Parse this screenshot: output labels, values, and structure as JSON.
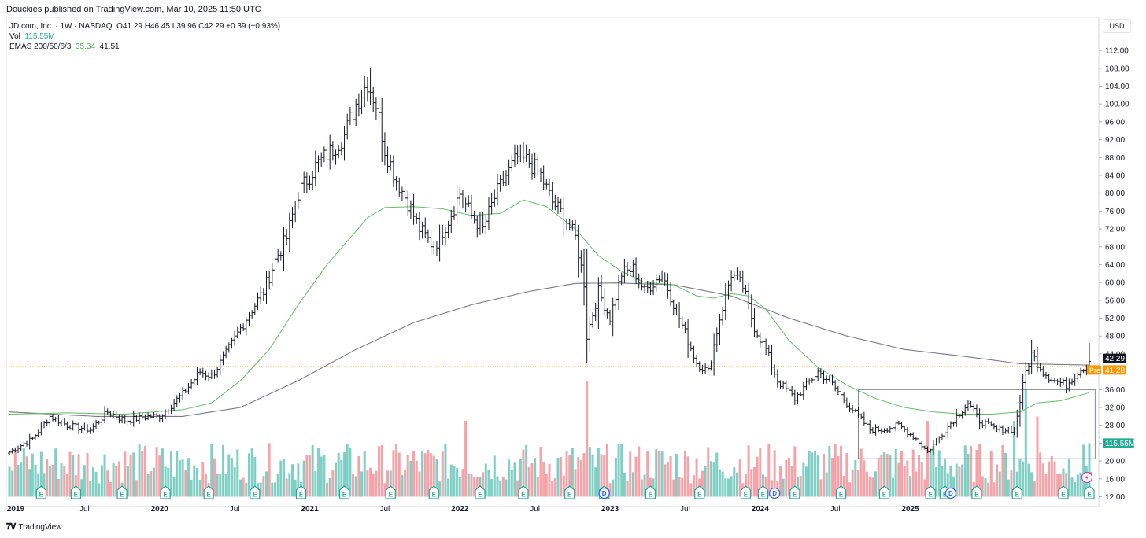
{
  "header": {
    "publisher_line": "Douckies published on TradingView.com, Mar 10, 2025 11:50 UTC"
  },
  "legend": {
    "symbol_line": "JD.com, Inc. · 1W · NASDAQ",
    "ohlc": {
      "o": "O41.29",
      "h": "H46.45",
      "l": "L39.96",
      "c": "C42.29",
      "change": "+0.39 (+0.93%)"
    },
    "vol_label": "Vol",
    "vol_value": "115.55M",
    "ema_label": "EMAS 200/50/6/3",
    "ema_value_1": "35.34",
    "ema_value_2": "41.51"
  },
  "currency": "USD",
  "footer": {
    "brand": "TradingView"
  },
  "colors": {
    "up": "#22ab94",
    "down": "#f7525f",
    "bar": "#131722",
    "ema50": "#66bb6a",
    "ema200": "#787b86",
    "price_line": "#ff9800",
    "vol_up": "#7fcfc4",
    "vol_down": "#f4a3a9"
  },
  "chart_data": {
    "type": "ohlc",
    "x_axis_labels": [
      "2019",
      "Jul",
      "2020",
      "Jul",
      "2021",
      "Jul",
      "2022",
      "Jul",
      "2023",
      "Jul",
      "2024",
      "Jul",
      "2025"
    ],
    "y_ticks": [
      "12.00",
      "16.00",
      "20.00",
      "24.00",
      "28.00",
      "32.00",
      "36.00",
      "40.00",
      "44.00",
      "48.00",
      "52.00",
      "56.00",
      "60.00",
      "64.00",
      "68.00",
      "72.00",
      "76.00",
      "80.00",
      "84.00",
      "88.00",
      "92.00",
      "96.00",
      "100.00",
      "104.00",
      "108.00",
      "112.00"
    ],
    "ylim": [
      10.3,
      115.6
    ],
    "last_price_label": "42.29",
    "premarket_label": "Pre",
    "premarket_price_label": "41.28",
    "volume_label": "115.55M",
    "price_key_points": [
      [
        0,
        22
      ],
      [
        8,
        25
      ],
      [
        14,
        30
      ],
      [
        20,
        28
      ],
      [
        28,
        27
      ],
      [
        34,
        31
      ],
      [
        40,
        29
      ],
      [
        48,
        30
      ],
      [
        52,
        30
      ],
      [
        60,
        35
      ],
      [
        66,
        40
      ],
      [
        70,
        39
      ],
      [
        75,
        44
      ],
      [
        82,
        52
      ],
      [
        88,
        58
      ],
      [
        92,
        65
      ],
      [
        96,
        70
      ],
      [
        100,
        80
      ],
      [
        106,
        86
      ],
      [
        112,
        90
      ],
      [
        116,
        93
      ],
      [
        120,
        100
      ],
      [
        124,
        105
      ],
      [
        127,
        100
      ],
      [
        130,
        90
      ],
      [
        134,
        83
      ],
      [
        138,
        78
      ],
      [
        142,
        72
      ],
      [
        147,
        68
      ],
      [
        152,
        74
      ],
      [
        156,
        80
      ],
      [
        160,
        75
      ],
      [
        164,
        72
      ],
      [
        168,
        79
      ],
      [
        172,
        84
      ],
      [
        176,
        88
      ],
      [
        180,
        87
      ],
      [
        184,
        84
      ],
      [
        188,
        78
      ],
      [
        192,
        75
      ],
      [
        196,
        70
      ],
      [
        199,
        60
      ],
      [
        200,
        48
      ],
      [
        204,
        58
      ],
      [
        208,
        52
      ],
      [
        212,
        62
      ],
      [
        216,
        63
      ],
      [
        220,
        58
      ],
      [
        226,
        62
      ],
      [
        232,
        52
      ],
      [
        238,
        42
      ],
      [
        242,
        40
      ],
      [
        246,
        52
      ],
      [
        250,
        62
      ],
      [
        254,
        59
      ],
      [
        258,
        50
      ],
      [
        262,
        45
      ],
      [
        266,
        38
      ],
      [
        272,
        34
      ],
      [
        276,
        37
      ],
      [
        280,
        40
      ],
      [
        284,
        38
      ],
      [
        290,
        33
      ],
      [
        294,
        30
      ],
      [
        298,
        27
      ],
      [
        302,
        27
      ],
      [
        308,
        28
      ],
      [
        314,
        25
      ],
      [
        318,
        22
      ],
      [
        324,
        27
      ],
      [
        328,
        30
      ],
      [
        332,
        33
      ],
      [
        336,
        29
      ],
      [
        342,
        27
      ],
      [
        348,
        27
      ],
      [
        352,
        40
      ],
      [
        354,
        44
      ],
      [
        358,
        40
      ],
      [
        362,
        38
      ],
      [
        366,
        37
      ],
      [
        370,
        40
      ],
      [
        374,
        42
      ]
    ],
    "ema50_key_points": [
      [
        0,
        30.5
      ],
      [
        20,
        30.8
      ],
      [
        40,
        30.5
      ],
      [
        60,
        31.5
      ],
      [
        70,
        33
      ],
      [
        80,
        38
      ],
      [
        90,
        45
      ],
      [
        100,
        55
      ],
      [
        110,
        64
      ],
      [
        118,
        70
      ],
      [
        124,
        74.5
      ],
      [
        130,
        76.8
      ],
      [
        140,
        77
      ],
      [
        150,
        76.5
      ],
      [
        160,
        75
      ],
      [
        170,
        75.5
      ],
      [
        178,
        78.5
      ],
      [
        186,
        77
      ],
      [
        196,
        72
      ],
      [
        204,
        66
      ],
      [
        212,
        62.5
      ],
      [
        220,
        60
      ],
      [
        230,
        59.5
      ],
      [
        238,
        57
      ],
      [
        244,
        56.5
      ],
      [
        250,
        57.5
      ],
      [
        256,
        57
      ],
      [
        262,
        54
      ],
      [
        270,
        47
      ],
      [
        280,
        41
      ],
      [
        290,
        37
      ],
      [
        300,
        34
      ],
      [
        310,
        32
      ],
      [
        320,
        31
      ],
      [
        330,
        30.5
      ],
      [
        340,
        30.5
      ],
      [
        350,
        31
      ],
      [
        356,
        33
      ],
      [
        364,
        33.5
      ],
      [
        374,
        35.3
      ]
    ],
    "ema200_key_points": [
      [
        0,
        31
      ],
      [
        30,
        30
      ],
      [
        60,
        30
      ],
      [
        80,
        32
      ],
      [
        100,
        38
      ],
      [
        120,
        45
      ],
      [
        140,
        51
      ],
      [
        160,
        55
      ],
      [
        180,
        58
      ],
      [
        196,
        59.8
      ],
      [
        210,
        59.9
      ],
      [
        230,
        59.5
      ],
      [
        250,
        57
      ],
      [
        270,
        52
      ],
      [
        290,
        48
      ],
      [
        310,
        45
      ],
      [
        330,
        43.5
      ],
      [
        350,
        41.8
      ],
      [
        374,
        41.5
      ]
    ],
    "volume_spikes": [
      [
        200,
        38
      ],
      [
        158,
        29
      ],
      [
        318,
        29
      ],
      [
        348,
        29
      ],
      [
        352,
        36
      ],
      [
        356,
        30
      ],
      [
        374,
        24
      ]
    ],
    "events": {
      "earnings_x": [
        11,
        23,
        39,
        54,
        69,
        85,
        101,
        116,
        132,
        147,
        163,
        178,
        194,
        206,
        222,
        239,
        255,
        261,
        272,
        288,
        303,
        319,
        324,
        335,
        349,
        365,
        374
      ],
      "earnings_label": "E",
      "dividend_x": [
        206,
        265,
        326
      ],
      "dividend_label": "D"
    },
    "rectangle": {
      "x_start": 294,
      "x_end": 376,
      "y_low": 20.5,
      "y_high": 36
    }
  }
}
